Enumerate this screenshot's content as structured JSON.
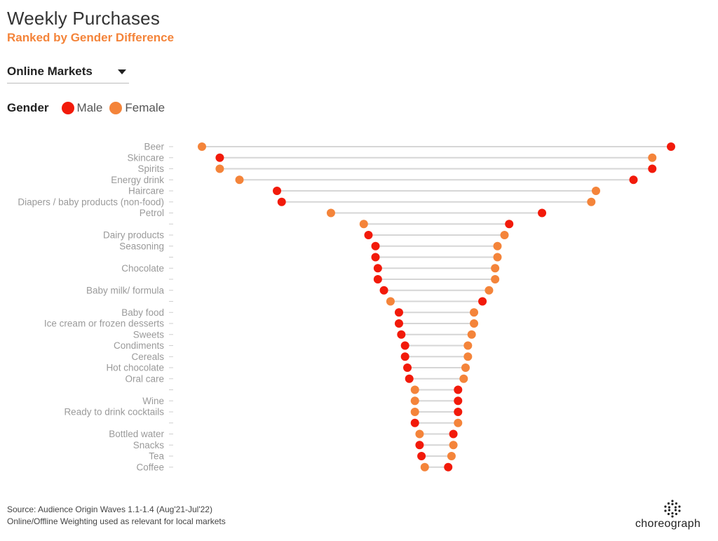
{
  "header": {
    "title": "Weekly Purchases",
    "subtitle": "Ranked by Gender Difference"
  },
  "filter": {
    "selected": "Online Markets",
    "icon": "chevron-down-icon"
  },
  "legend": {
    "title": "Gender",
    "items": [
      {
        "label": "Male",
        "color": "#f21a0a"
      },
      {
        "label": "Female",
        "color": "#f4843a"
      }
    ]
  },
  "footer": {
    "line1": "Source: Audience Origin Waves 1.1-1.4 (Aug'21-Jul'22)",
    "line2": "Online/Offline Weighting used as relevant for local markets"
  },
  "brand": {
    "name": "choreograph"
  },
  "colors": {
    "male": "#f21a0a",
    "female": "#f4843a",
    "connector": "#d6d6d6",
    "label": "#9a9a9a"
  },
  "chart_data": {
    "type": "dumbbell",
    "title": "Weekly Purchases",
    "subtitle": "Ranked by Gender Difference",
    "xlabel": "",
    "ylabel": "",
    "grid": false,
    "legend_position": "top-left",
    "series_names": [
      "Male",
      "Female"
    ],
    "rows": [
      {
        "label": "Beer",
        "male": 100,
        "female": 0
      },
      {
        "label": "Skincare",
        "male": 3.8,
        "female": 96
      },
      {
        "label": "Spirits",
        "male": 96,
        "female": 3.8
      },
      {
        "label": "Energy drink",
        "male": 92,
        "female": 8
      },
      {
        "label": "Haircare",
        "male": 16,
        "female": 84
      },
      {
        "label": "Diapers / baby products (non-food)",
        "male": 17,
        "female": 83
      },
      {
        "label": "Petrol",
        "male": 72.5,
        "female": 27.5
      },
      {
        "label": "",
        "male": 65.5,
        "female": 34.5
      },
      {
        "label": "Dairy products",
        "male": 35.5,
        "female": 64.5
      },
      {
        "label": "Seasoning",
        "male": 37,
        "female": 63
      },
      {
        "label": "",
        "male": 37,
        "female": 63
      },
      {
        "label": "Chocolate",
        "male": 37.5,
        "female": 62.5
      },
      {
        "label": "",
        "male": 37.5,
        "female": 62.5
      },
      {
        "label": "Baby milk/ formula",
        "male": 38.8,
        "female": 61.2
      },
      {
        "label": "",
        "male": 59.8,
        "female": 40.2
      },
      {
        "label": "Baby food",
        "male": 42,
        "female": 58
      },
      {
        "label": "Ice cream or frozen desserts",
        "male": 42,
        "female": 58
      },
      {
        "label": "Sweets",
        "male": 42.5,
        "female": 57.5
      },
      {
        "label": "Condiments",
        "male": 43.3,
        "female": 56.7
      },
      {
        "label": "Cereals",
        "male": 43.3,
        "female": 56.7
      },
      {
        "label": "Hot chocolate",
        "male": 43.8,
        "female": 56.2
      },
      {
        "label": "Oral care",
        "male": 44.2,
        "female": 55.8
      },
      {
        "label": "",
        "male": 54.6,
        "female": 45.4
      },
      {
        "label": "Wine",
        "male": 54.6,
        "female": 45.4
      },
      {
        "label": "Ready to drink cocktails",
        "male": 54.6,
        "female": 45.4
      },
      {
        "label": "",
        "male": 45.4,
        "female": 54.6
      },
      {
        "label": "Bottled water",
        "male": 53.6,
        "female": 46.4
      },
      {
        "label": "Snacks",
        "male": 46.4,
        "female": 53.6
      },
      {
        "label": "Tea",
        "male": 46.8,
        "female": 53.2
      },
      {
        "label": "Coffee",
        "male": 52.5,
        "female": 47.5
      }
    ]
  }
}
